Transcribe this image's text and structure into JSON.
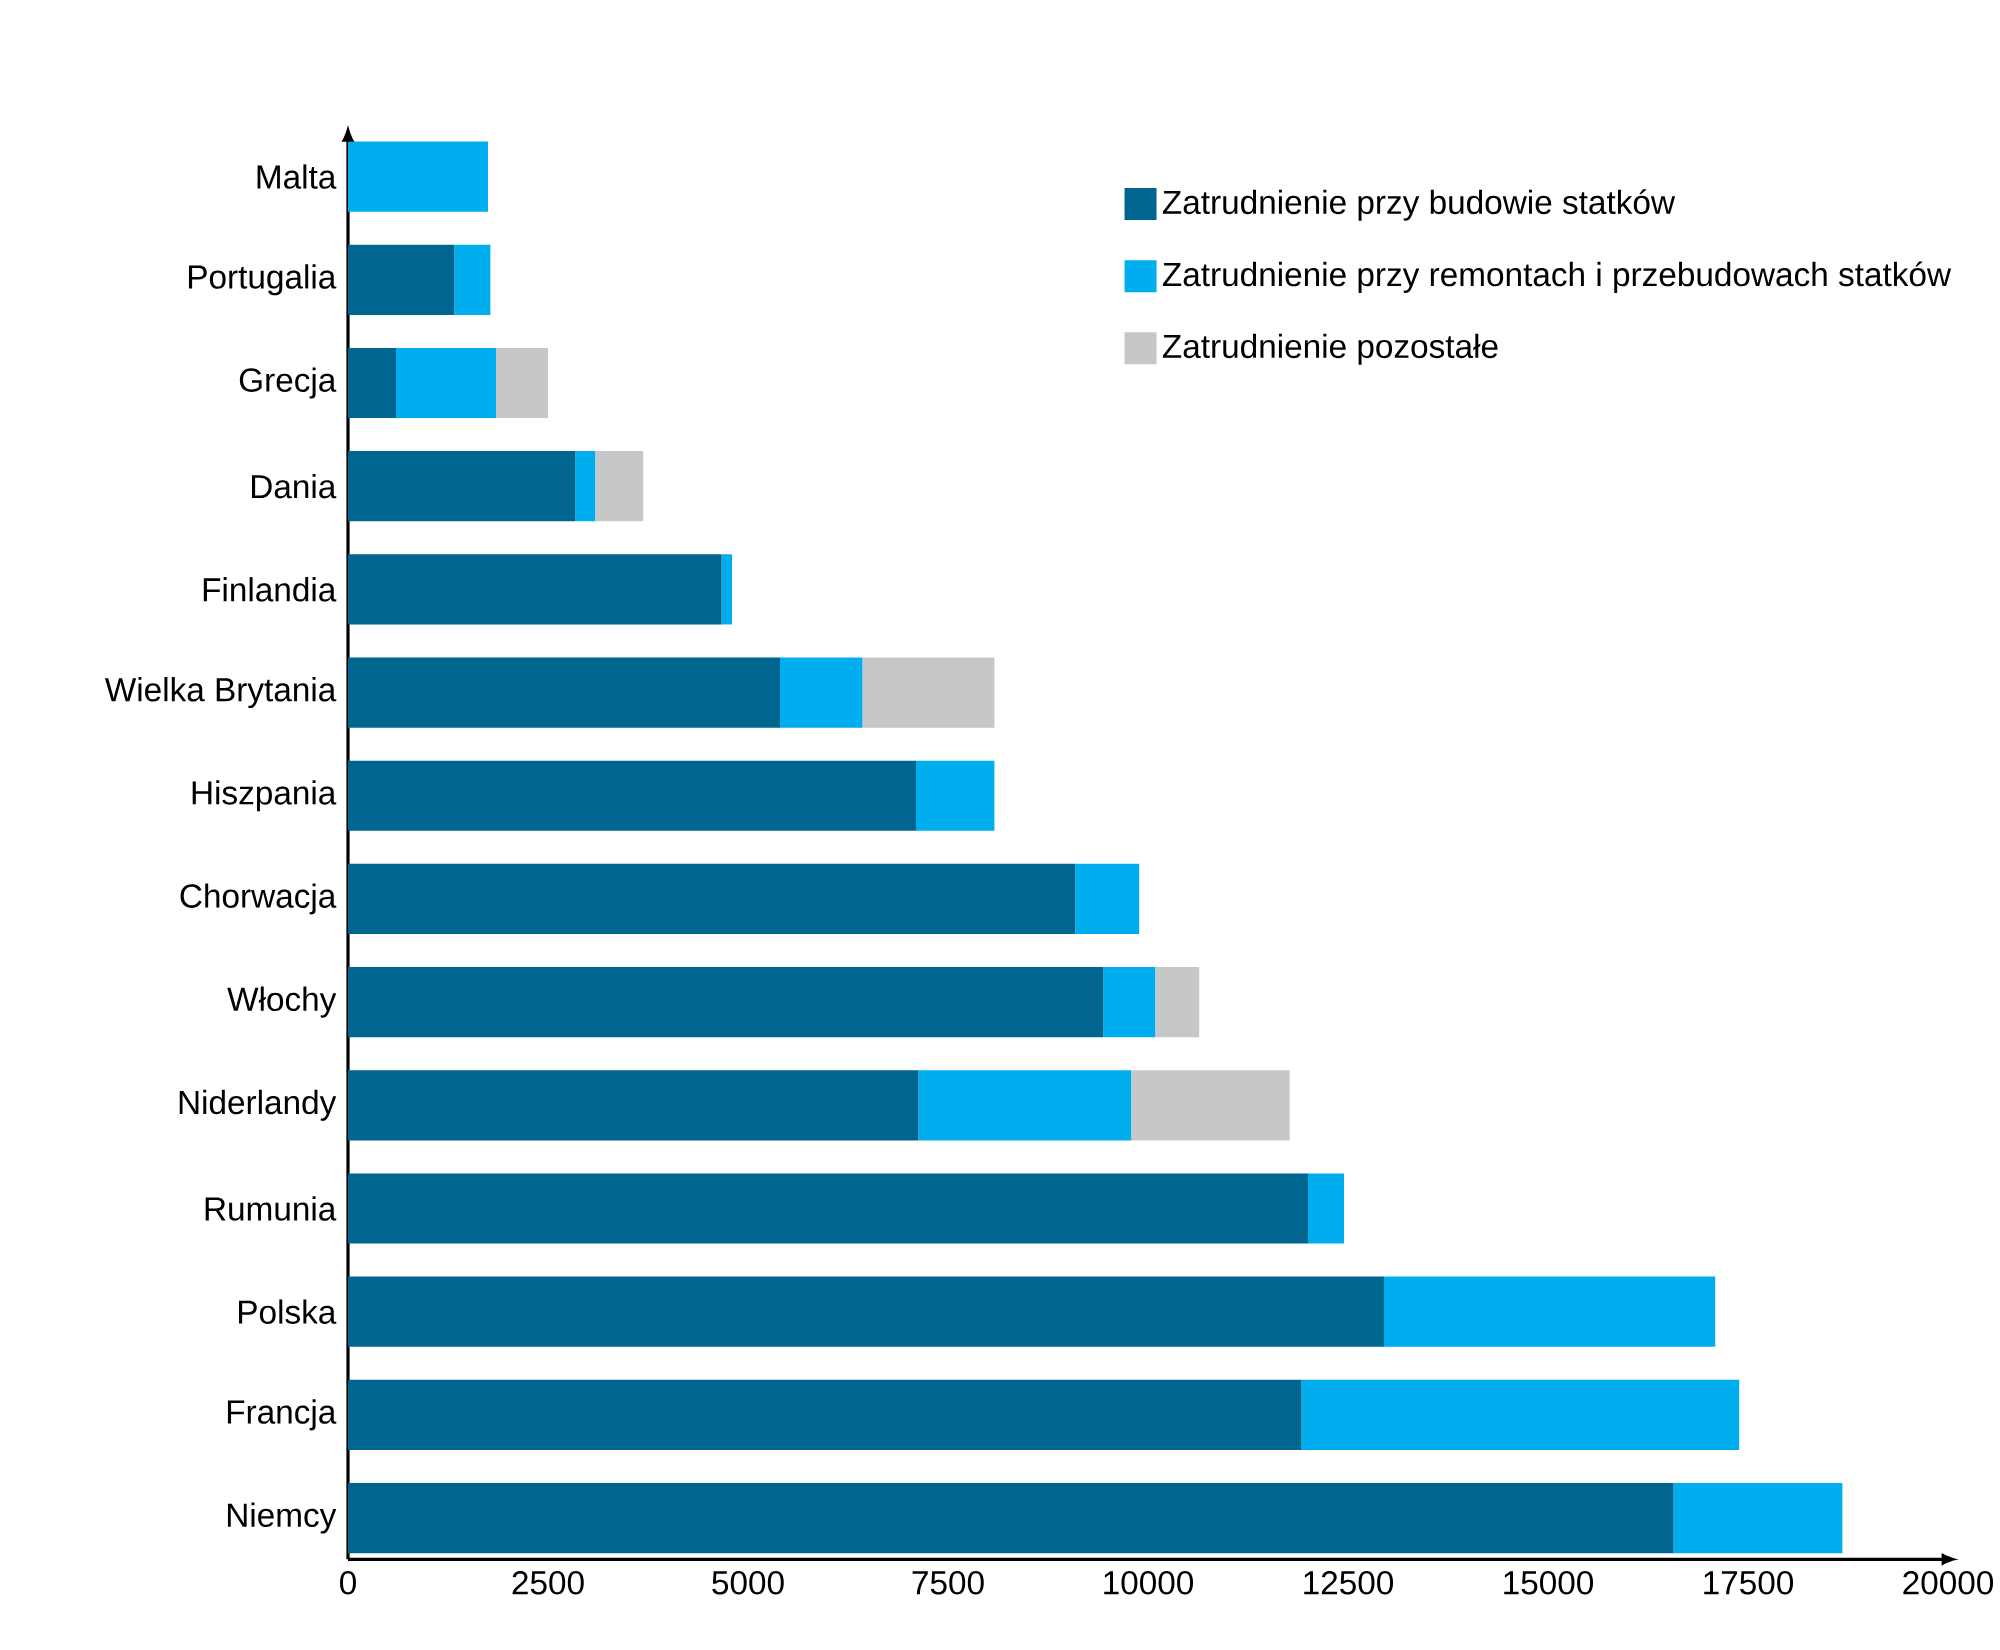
{
  "chart_data": {
    "type": "bar",
    "orientation": "horizontal",
    "stacked": true,
    "categories": [
      "Malta",
      "Portugalia",
      "Grecja",
      "Dania",
      "Finlandia",
      "Wielka Brytania",
      "Hiszpania",
      "Chorwacja",
      "Włochy",
      "Niderlandy",
      "Rumunia",
      "Polska",
      "Francja",
      "Niemcy"
    ],
    "series": [
      {
        "name": "Zatrudnienie przy budowie statków",
        "color": "#006690",
        "values": [
          0,
          1330,
          600,
          2840,
          4670,
          5400,
          7100,
          9090,
          9440,
          7130,
          12000,
          12950,
          11920,
          16570
        ]
      },
      {
        "name": "Zatrudnienie przy remontach i przebudowach statków",
        "color": "#00aeef",
        "values": [
          1750,
          450,
          1250,
          250,
          130,
          1030,
          980,
          800,
          650,
          2660,
          450,
          4140,
          5470,
          2110
        ]
      },
      {
        "name": "Zatrudnienie pozostałe",
        "color": "#c6c7c9",
        "values": [
          0,
          0,
          650,
          600,
          0,
          1650,
          0,
          0,
          550,
          1980,
          0,
          0,
          0,
          0
        ]
      }
    ],
    "xlim": [
      0,
      20000
    ],
    "xticks": [
      0,
      2500,
      5000,
      7500,
      10000,
      12500,
      15000,
      17500,
      20000
    ],
    "legend": "top right",
    "grid": false
  }
}
